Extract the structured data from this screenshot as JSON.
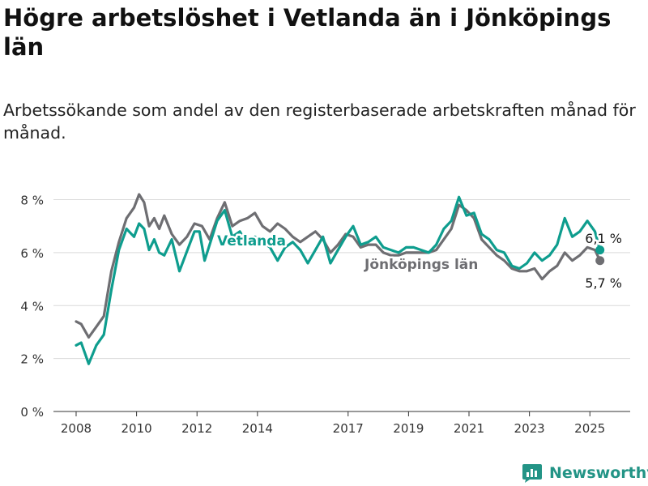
{
  "title": "Högre arbetslöshet i Vetlanda än i Jönköpings län",
  "subtitle": "Arbetssökande som andel av den registerbaserade arbetskraften månad för månad.",
  "brand": "Newsworthy",
  "colors": {
    "vetlanda": "#0e9d8e",
    "jonkoping": "#6e6e72",
    "grid": "#d9d9d9",
    "axis": "#333333",
    "brand": "#239486"
  },
  "chart_data": {
    "type": "line",
    "x_ticks": [
      "2008",
      "2010",
      "2012",
      "2014",
      "2017",
      "2019",
      "2021",
      "2023",
      "2025"
    ],
    "y_ticks": [
      "0 %",
      "2 %",
      "4 %",
      "6 %",
      "8 %"
    ],
    "ylim": [
      0,
      8.2
    ],
    "xlim": [
      "2007-04",
      "2026-05"
    ],
    "grid": true,
    "series": [
      {
        "name": "Vetlanda",
        "color": "#0e9d8e",
        "end_label": "6,1 %",
        "points": [
          [
            "2008-01",
            2.5
          ],
          [
            "2008-03",
            2.6
          ],
          [
            "2008-06",
            1.8
          ],
          [
            "2008-09",
            2.5
          ],
          [
            "2008-12",
            2.9
          ],
          [
            "2009-03",
            4.6
          ],
          [
            "2009-06",
            6.1
          ],
          [
            "2009-09",
            6.9
          ],
          [
            "2009-12",
            6.6
          ],
          [
            "2010-02",
            7.1
          ],
          [
            "2010-04",
            6.9
          ],
          [
            "2010-06",
            6.1
          ],
          [
            "2010-08",
            6.5
          ],
          [
            "2010-10",
            6.0
          ],
          [
            "2010-12",
            5.9
          ],
          [
            "2011-03",
            6.5
          ],
          [
            "2011-06",
            5.3
          ],
          [
            "2011-08",
            5.8
          ],
          [
            "2011-10",
            6.3
          ],
          [
            "2011-12",
            6.8
          ],
          [
            "2012-02",
            6.8
          ],
          [
            "2012-04",
            5.7
          ],
          [
            "2012-06",
            6.3
          ],
          [
            "2012-09",
            7.2
          ],
          [
            "2012-12",
            7.6
          ],
          [
            "2013-03",
            6.6
          ],
          [
            "2013-06",
            6.8
          ],
          [
            "2013-09",
            6.3
          ],
          [
            "2013-12",
            6.6
          ],
          [
            "2014-03",
            6.4
          ],
          [
            "2014-06",
            6.2
          ],
          [
            "2014-09",
            5.7
          ],
          [
            "2014-12",
            6.2
          ],
          [
            "2015-03",
            6.4
          ],
          [
            "2015-06",
            6.1
          ],
          [
            "2015-09",
            5.6
          ],
          [
            "2015-12",
            6.1
          ],
          [
            "2016-03",
            6.6
          ],
          [
            "2016-06",
            5.6
          ],
          [
            "2016-09",
            6.1
          ],
          [
            "2016-12",
            6.6
          ],
          [
            "2017-03",
            7.0
          ],
          [
            "2017-06",
            6.3
          ],
          [
            "2017-09",
            6.4
          ],
          [
            "2017-12",
            6.6
          ],
          [
            "2018-03",
            6.2
          ],
          [
            "2018-06",
            6.1
          ],
          [
            "2018-09",
            6.0
          ],
          [
            "2018-12",
            6.2
          ],
          [
            "2019-03",
            6.2
          ],
          [
            "2019-06",
            6.1
          ],
          [
            "2019-09",
            6.0
          ],
          [
            "2019-12",
            6.3
          ],
          [
            "2020-03",
            6.9
          ],
          [
            "2020-06",
            7.2
          ],
          [
            "2020-09",
            8.1
          ],
          [
            "2020-12",
            7.4
          ],
          [
            "2021-03",
            7.5
          ],
          [
            "2021-06",
            6.7
          ],
          [
            "2021-09",
            6.5
          ],
          [
            "2021-12",
            6.1
          ],
          [
            "2022-03",
            6.0
          ],
          [
            "2022-06",
            5.5
          ],
          [
            "2022-09",
            5.4
          ],
          [
            "2022-12",
            5.6
          ],
          [
            "2023-03",
            6.0
          ],
          [
            "2023-06",
            5.7
          ],
          [
            "2023-09",
            5.9
          ],
          [
            "2023-12",
            6.3
          ],
          [
            "2024-03",
            7.3
          ],
          [
            "2024-06",
            6.6
          ],
          [
            "2024-09",
            6.8
          ],
          [
            "2024-12",
            7.2
          ],
          [
            "2025-03",
            6.8
          ],
          [
            "2025-05",
            6.1
          ]
        ]
      },
      {
        "name": "Jönköpings län",
        "color": "#6e6e72",
        "end_label": "5,7 %",
        "points": [
          [
            "2008-01",
            3.4
          ],
          [
            "2008-03",
            3.3
          ],
          [
            "2008-06",
            2.8
          ],
          [
            "2008-09",
            3.2
          ],
          [
            "2008-12",
            3.6
          ],
          [
            "2009-03",
            5.3
          ],
          [
            "2009-06",
            6.4
          ],
          [
            "2009-09",
            7.3
          ],
          [
            "2009-12",
            7.7
          ],
          [
            "2010-02",
            8.2
          ],
          [
            "2010-04",
            7.9
          ],
          [
            "2010-06",
            7.0
          ],
          [
            "2010-08",
            7.3
          ],
          [
            "2010-10",
            6.9
          ],
          [
            "2010-12",
            7.4
          ],
          [
            "2011-03",
            6.7
          ],
          [
            "2011-06",
            6.3
          ],
          [
            "2011-09",
            6.6
          ],
          [
            "2011-12",
            7.1
          ],
          [
            "2012-03",
            7.0
          ],
          [
            "2012-06",
            6.5
          ],
          [
            "2012-09",
            7.3
          ],
          [
            "2012-12",
            7.9
          ],
          [
            "2013-03",
            7.0
          ],
          [
            "2013-06",
            7.2
          ],
          [
            "2013-09",
            7.3
          ],
          [
            "2013-12",
            7.5
          ],
          [
            "2014-03",
            7.0
          ],
          [
            "2014-06",
            6.8
          ],
          [
            "2014-09",
            7.1
          ],
          [
            "2014-12",
            6.9
          ],
          [
            "2015-03",
            6.6
          ],
          [
            "2015-06",
            6.4
          ],
          [
            "2015-09",
            6.6
          ],
          [
            "2015-12",
            6.8
          ],
          [
            "2016-03",
            6.5
          ],
          [
            "2016-06",
            6.0
          ],
          [
            "2016-09",
            6.3
          ],
          [
            "2016-12",
            6.7
          ],
          [
            "2017-03",
            6.6
          ],
          [
            "2017-06",
            6.2
          ],
          [
            "2017-09",
            6.3
          ],
          [
            "2017-12",
            6.3
          ],
          [
            "2018-03",
            6.0
          ],
          [
            "2018-06",
            5.9
          ],
          [
            "2018-09",
            5.9
          ],
          [
            "2018-12",
            6.0
          ],
          [
            "2019-03",
            6.0
          ],
          [
            "2019-06",
            6.0
          ],
          [
            "2019-09",
            6.0
          ],
          [
            "2019-12",
            6.1
          ],
          [
            "2020-03",
            6.5
          ],
          [
            "2020-06",
            6.9
          ],
          [
            "2020-09",
            7.8
          ],
          [
            "2020-12",
            7.6
          ],
          [
            "2021-03",
            7.3
          ],
          [
            "2021-06",
            6.5
          ],
          [
            "2021-09",
            6.2
          ],
          [
            "2021-12",
            5.9
          ],
          [
            "2022-03",
            5.7
          ],
          [
            "2022-06",
            5.4
          ],
          [
            "2022-09",
            5.3
          ],
          [
            "2022-12",
            5.3
          ],
          [
            "2023-03",
            5.4
          ],
          [
            "2023-06",
            5.0
          ],
          [
            "2023-09",
            5.3
          ],
          [
            "2023-12",
            5.5
          ],
          [
            "2024-03",
            6.0
          ],
          [
            "2024-06",
            5.7
          ],
          [
            "2024-09",
            5.9
          ],
          [
            "2024-12",
            6.2
          ],
          [
            "2025-03",
            6.1
          ],
          [
            "2025-05",
            5.7
          ]
        ]
      }
    ]
  }
}
